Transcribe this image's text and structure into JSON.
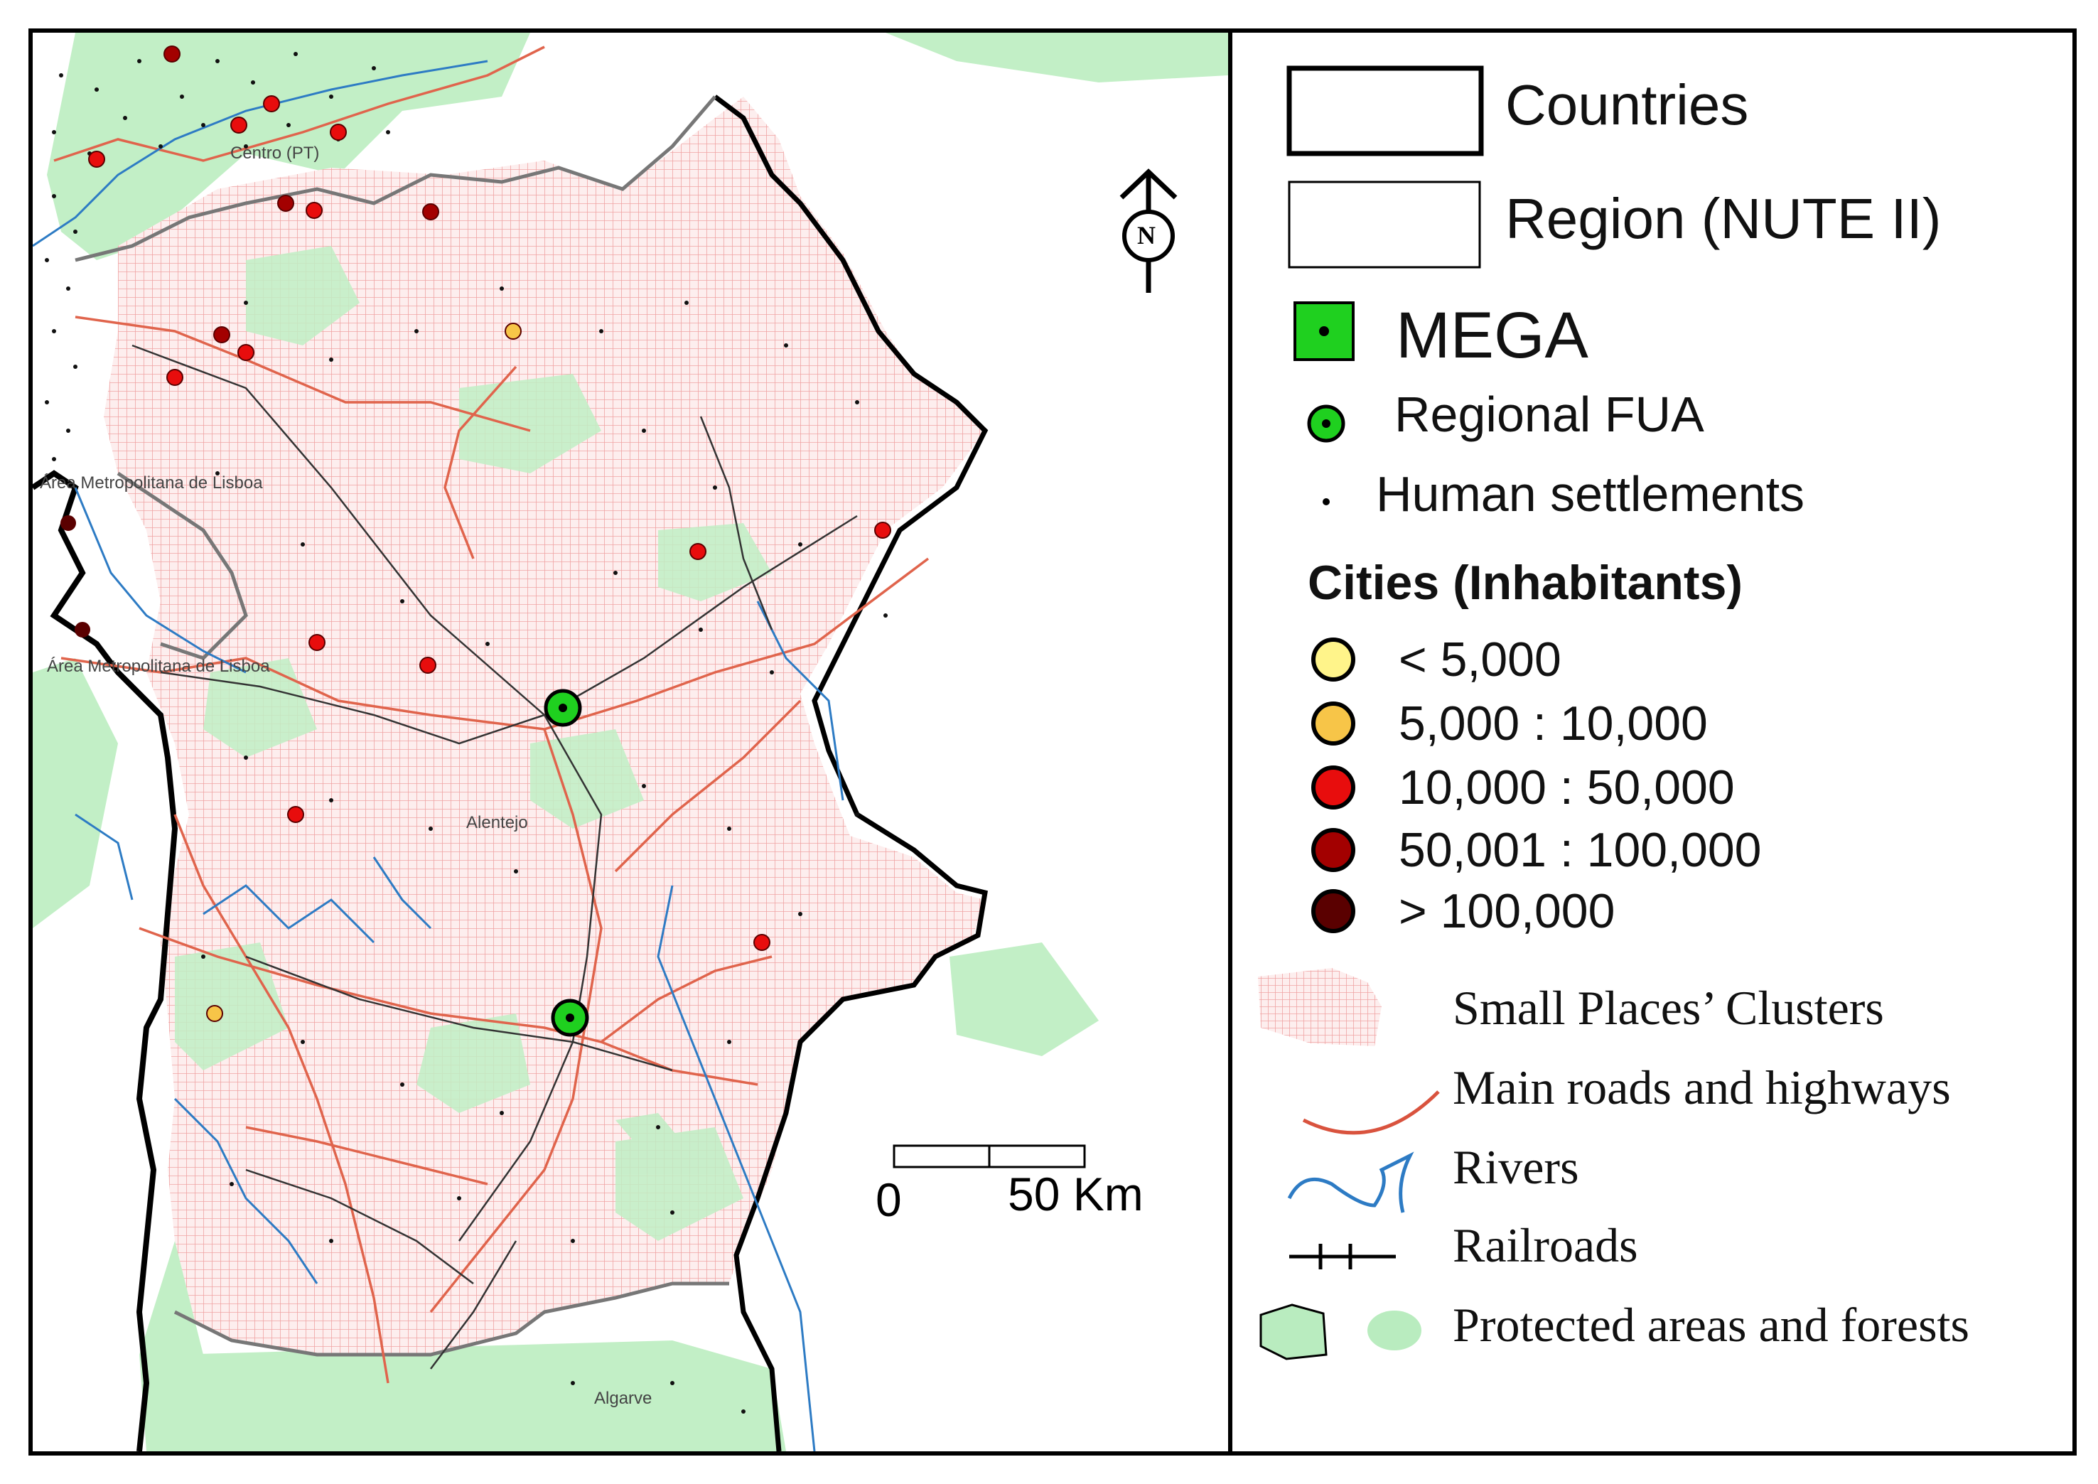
{
  "map": {
    "place_labels": {
      "centro": "Centro (PT)",
      "lisboa_top": "Área Metropolitana de Lisboa",
      "lisboa_bottom": "Área Metropolitana de Lisboa",
      "alentejo": "Alentejo",
      "algarve": "Algarve"
    },
    "scale": {
      "start": "0",
      "end": "50 Km"
    },
    "north_symbol": "N",
    "colors": {
      "small_places": "#f2a6a6",
      "region_fill": "#fbe6e6",
      "protected": "#b9ecbf",
      "roads": "#d9533e",
      "rivers": "#2d7bc4",
      "railroads": "#222222",
      "mega": "#1fd01f"
    }
  },
  "legend": {
    "countries": "Countries",
    "region": "Region (NUTE II)",
    "mega": "MEGA",
    "regional_fua": "Regional FUA",
    "human_settlements": "Human settlements",
    "cities_title": "Cities (Inhabitants)",
    "city_classes": [
      {
        "label": "< 5,000",
        "color": "#fff48a"
      },
      {
        "label": "5,000 : 10,000",
        "color": "#f7c548"
      },
      {
        "label": "10,000 : 50,000",
        "color": "#e80d0d"
      },
      {
        "label": "50,001 : 100,000",
        "color": "#a30000"
      },
      {
        "label": "> 100,000",
        "color": "#5a0000"
      }
    ],
    "small_places": "Small Places’ Clusters",
    "main_roads": "Main roads and highways",
    "rivers": "Rivers",
    "railroads": "Railroads",
    "protected": "Protected areas and forests"
  }
}
